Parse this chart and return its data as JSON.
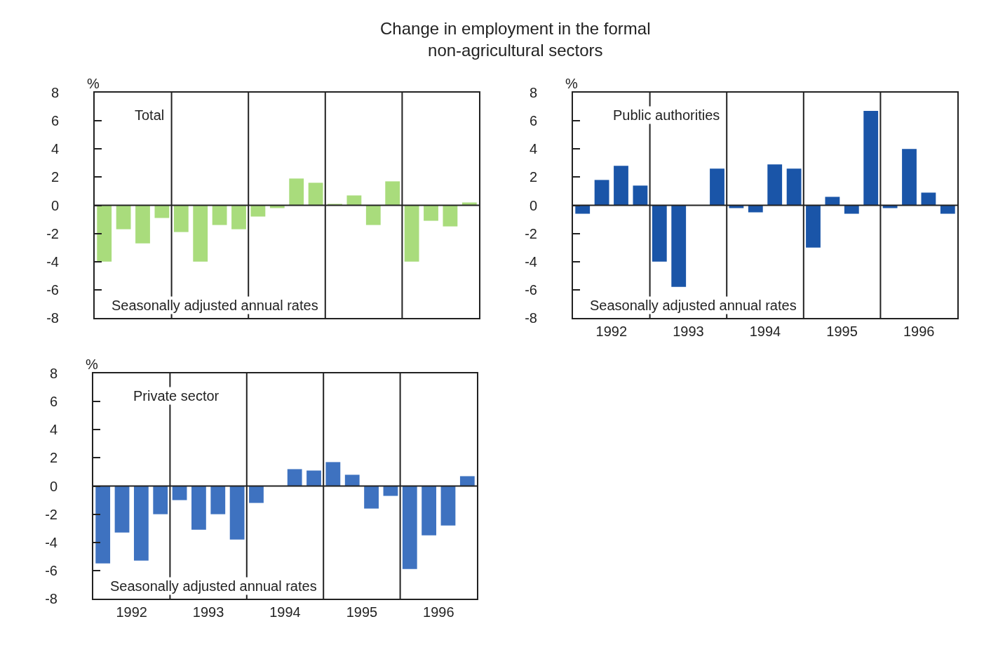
{
  "chart_data": [
    {
      "type": "bar",
      "title": "Change in employment in the formal\nnon-agricultural sectors",
      "subtitle": "Total",
      "ylabel": "%",
      "annotations": [
        "Seasonally adjusted annual rates"
      ],
      "x": [
        1992.125,
        1992.375,
        1992.625,
        1992.875,
        1993.125,
        1993.375,
        1993.625,
        1993.875,
        1994.125,
        1994.375,
        1994.625,
        1994.875,
        1995.125,
        1995.375,
        1995.625,
        1995.875,
        1996.125,
        1996.375,
        1996.625,
        1996.875
      ],
      "values": [
        -4.0,
        -1.7,
        -2.7,
        -0.9,
        -1.9,
        -4.0,
        -1.4,
        -1.7,
        -0.8,
        -0.2,
        1.9,
        1.6,
        0.1,
        0.7,
        -1.4,
        1.7,
        -4.0,
        -1.1,
        -1.5,
        0.2
      ],
      "color": "#a9dc7c",
      "xlim": [
        1992,
        1997
      ],
      "ylim": [
        -8,
        8
      ],
      "yticks": [
        -8,
        -6,
        -4,
        -2,
        0,
        2,
        4,
        6,
        8
      ],
      "tick_labels": "y",
      "ref_lines": [
        {
          "axis": "y",
          "value": 0
        },
        {
          "axis": "x",
          "value": 1993
        },
        {
          "axis": "x",
          "value": 1994
        },
        {
          "axis": "x",
          "value": 1995
        },
        {
          "axis": "x",
          "value": 1996
        }
      ]
    },
    {
      "type": "bar",
      "subtitle": "Public authorities",
      "ylabel": "%",
      "annotations": [
        "Seasonally adjusted annual rates"
      ],
      "x": [
        1992.125,
        1992.375,
        1992.625,
        1992.875,
        1993.125,
        1993.375,
        1993.625,
        1993.875,
        1994.125,
        1994.375,
        1994.625,
        1994.875,
        1995.125,
        1995.375,
        1995.625,
        1995.875,
        1996.125,
        1996.375,
        1996.625,
        1996.875
      ],
      "values": [
        -0.6,
        1.8,
        2.8,
        1.4,
        -4.0,
        -5.8,
        0,
        2.6,
        -0.2,
        -0.5,
        2.9,
        2.6,
        -3.0,
        0.6,
        -0.6,
        6.7,
        -0.2,
        4.0,
        0.9,
        -0.6
      ],
      "color": "#1a55a8",
      "xlim": [
        1992,
        1997
      ],
      "ylim": [
        -8,
        8
      ],
      "yticks": [
        -8,
        -6,
        -4,
        -2,
        0,
        2,
        4,
        6,
        8
      ],
      "xticks": [
        {
          "value": 1992.5,
          "label": "1992"
        },
        {
          "value": 1993.5,
          "label": "1993"
        },
        {
          "value": 1994.5,
          "label": "1994"
        },
        {
          "value": 1995.5,
          "label": "1995"
        },
        {
          "value": 1996.5,
          "label": "1996"
        }
      ],
      "ref_lines": [
        {
          "axis": "y",
          "value": 0
        },
        {
          "axis": "x",
          "value": 1993
        },
        {
          "axis": "x",
          "value": 1994
        },
        {
          "axis": "x",
          "value": 1995
        },
        {
          "axis": "x",
          "value": 1996
        }
      ]
    },
    {
      "type": "bar",
      "subtitle": "Private sector",
      "ylabel": "%",
      "annotations": [
        "Seasonally adjusted annual rates"
      ],
      "x": [
        1992.125,
        1992.375,
        1992.625,
        1992.875,
        1993.125,
        1993.375,
        1993.625,
        1993.875,
        1994.125,
        1994.375,
        1994.625,
        1994.875,
        1995.125,
        1995.375,
        1995.625,
        1995.875,
        1996.125,
        1996.375,
        1996.625,
        1996.875
      ],
      "values": [
        -5.5,
        -3.3,
        -5.3,
        -2.0,
        -1.0,
        -3.1,
        -2.0,
        -3.8,
        -1.2,
        0,
        1.2,
        1.1,
        1.7,
        0.8,
        -1.6,
        -0.7,
        -5.9,
        -3.5,
        -2.8,
        0.7
      ],
      "color": "#3e72c0",
      "xlim": [
        1992,
        1997
      ],
      "ylim": [
        -8,
        8
      ],
      "yticks": [
        -8,
        -6,
        -4,
        -2,
        0,
        2,
        4,
        6,
        8
      ],
      "xticks": [
        {
          "value": 1992.5,
          "label": "1992"
        },
        {
          "value": 1993.5,
          "label": "1993"
        },
        {
          "value": 1994.5,
          "label": "1994"
        },
        {
          "value": 1995.5,
          "label": "1995"
        },
        {
          "value": 1996.5,
          "label": "1996"
        }
      ],
      "ref_lines": [
        {
          "axis": "y",
          "value": 0
        },
        {
          "axis": "x",
          "value": 1993
        },
        {
          "axis": "x",
          "value": 1994
        },
        {
          "axis": "x",
          "value": 1995
        },
        {
          "axis": "x",
          "value": 1996
        }
      ]
    }
  ]
}
